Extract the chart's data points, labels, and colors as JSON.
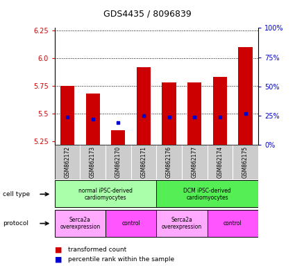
{
  "title": "GDS4435 / 8096839",
  "samples": [
    "GSM862172",
    "GSM862173",
    "GSM862170",
    "GSM862171",
    "GSM862176",
    "GSM862177",
    "GSM862174",
    "GSM862175"
  ],
  "transformed_counts": [
    5.75,
    5.68,
    5.35,
    5.92,
    5.78,
    5.78,
    5.83,
    6.1
  ],
  "percentile_ranks": [
    5.47,
    5.45,
    5.42,
    5.48,
    5.47,
    5.47,
    5.47,
    5.5
  ],
  "bar_bottom": 5.22,
  "ylim": [
    5.22,
    6.27
  ],
  "y_ticks_left": [
    5.25,
    5.5,
    5.75,
    6.0,
    6.25
  ],
  "y_ticks_right": [
    0,
    25,
    50,
    75,
    100
  ],
  "y_right_labels": [
    "0%",
    "25%",
    "50%",
    "75%",
    "100%"
  ],
  "bar_color": "#cc0000",
  "percentile_color": "#0000cc",
  "cell_type_groups": [
    {
      "label": "normal iPSC-derived\ncardiomyocytes",
      "start": 0,
      "end": 4,
      "color": "#aaffaa"
    },
    {
      "label": "DCM iPSC-derived\ncardiomyocytes",
      "start": 4,
      "end": 8,
      "color": "#55ee55"
    }
  ],
  "protocol_groups": [
    {
      "label": "Serca2a\noverexpression",
      "start": 0,
      "end": 2,
      "color": "#ffaaff"
    },
    {
      "label": "control",
      "start": 2,
      "end": 4,
      "color": "#ff55ff"
    },
    {
      "label": "Serca2a\noverexpression",
      "start": 4,
      "end": 6,
      "color": "#ffaaff"
    },
    {
      "label": "control",
      "start": 6,
      "end": 8,
      "color": "#ff55ff"
    }
  ],
  "label_color_red": "#cc0000",
  "label_color_blue": "#0000cc",
  "sample_bg_color": "#cccccc",
  "legend_items": [
    {
      "color": "#cc0000",
      "label": "transformed count"
    },
    {
      "color": "#0000cc",
      "label": "percentile rank within the sample"
    }
  ]
}
